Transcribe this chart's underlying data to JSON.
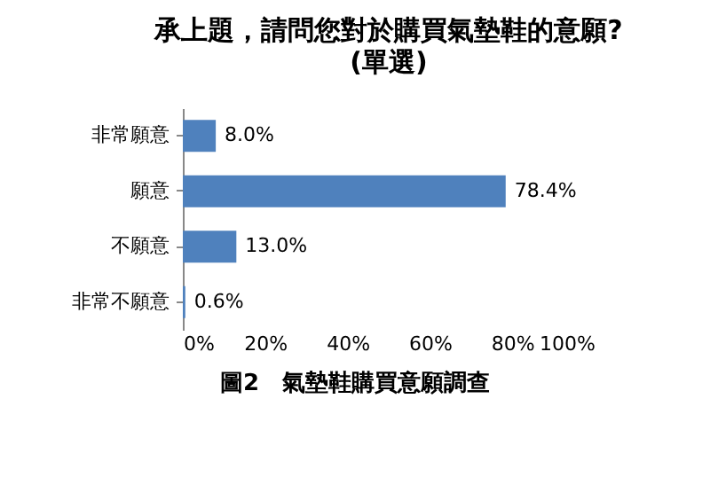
{
  "chart_data": {
    "type": "bar",
    "orientation": "horizontal",
    "title": "承上題，請問您對於購買氣墊鞋的意願?",
    "subtitle": "(單選)",
    "categories": [
      "非常願意",
      "願意",
      "不願意",
      "非常不願意"
    ],
    "values": [
      8.0,
      78.4,
      13.0,
      0.6
    ],
    "value_labels": [
      "8.0%",
      "78.4%",
      "13.0%",
      "0.6%"
    ],
    "color": "#4f81bd",
    "xlim": [
      0,
      100
    ],
    "xticks": [
      {
        "value": 0,
        "label": "0%"
      },
      {
        "value": 20,
        "label": "20%"
      },
      {
        "value": 40,
        "label": "40%"
      },
      {
        "value": 60,
        "label": "60%"
      },
      {
        "value": 80,
        "label": "80%"
      },
      {
        "value": 100,
        "label": "100%"
      }
    ],
    "grid": false,
    "annotations": [
      "圖2　氣墊鞋購買意願調查"
    ]
  }
}
